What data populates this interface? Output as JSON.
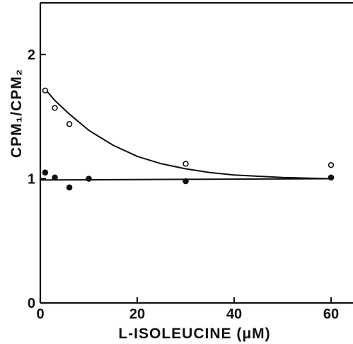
{
  "chart_data": {
    "type": "scatter",
    "xlabel": "L-ISOLEUCINE (μM)",
    "ylabel": "CPM₁/CPM₂",
    "xlim": [
      0,
      62
    ],
    "ylim": [
      0,
      2.4
    ],
    "x_ticks": [
      0,
      20,
      40,
      60
    ],
    "y_ticks": [
      0,
      1,
      2
    ],
    "x_tick_labels": [
      "0",
      "20",
      "40",
      "60"
    ],
    "y_tick_labels": [
      "0",
      "1",
      "2"
    ],
    "grid": false,
    "series": [
      {
        "marker": "open-circle",
        "points": [
          {
            "x": 1,
            "y": 1.71
          },
          {
            "x": 3,
            "y": 1.57
          },
          {
            "x": 6,
            "y": 1.44
          },
          {
            "x": 30,
            "y": 1.12
          },
          {
            "x": 60,
            "y": 1.11
          }
        ],
        "fit": "exponential-decay",
        "fit_curve": [
          {
            "x": 1,
            "y": 1.72
          },
          {
            "x": 3,
            "y": 1.63
          },
          {
            "x": 6,
            "y": 1.52
          },
          {
            "x": 10,
            "y": 1.39
          },
          {
            "x": 15,
            "y": 1.27
          },
          {
            "x": 20,
            "y": 1.18
          },
          {
            "x": 25,
            "y": 1.12
          },
          {
            "x": 30,
            "y": 1.08
          },
          {
            "x": 35,
            "y": 1.05
          },
          {
            "x": 40,
            "y": 1.03
          },
          {
            "x": 45,
            "y": 1.02
          },
          {
            "x": 50,
            "y": 1.01
          },
          {
            "x": 55,
            "y": 1.005
          },
          {
            "x": 60,
            "y": 1.0
          }
        ]
      },
      {
        "marker": "filled-circle",
        "points": [
          {
            "x": 1,
            "y": 1.05
          },
          {
            "x": 3,
            "y": 1.01
          },
          {
            "x": 6,
            "y": 0.93
          },
          {
            "x": 10,
            "y": 1.0
          },
          {
            "x": 30,
            "y": 0.98
          },
          {
            "x": 60,
            "y": 1.01
          }
        ],
        "fit": "linear",
        "fit_curve": [
          {
            "x": 0,
            "y": 0.99
          },
          {
            "x": 60,
            "y": 1.0
          }
        ]
      }
    ]
  }
}
